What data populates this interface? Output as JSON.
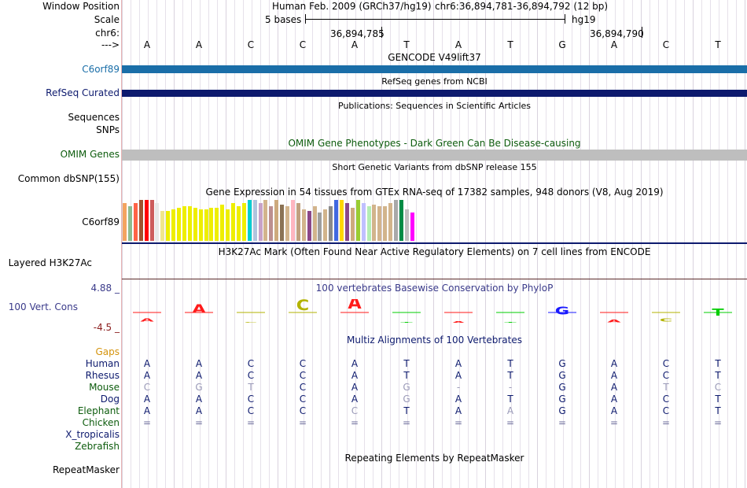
{
  "header": {
    "assembly": "Human Feb. 2009 (GRCh37/hg19)",
    "position": "chr6:36,894,781-36,894,792 (12 bp)",
    "scale_text": "5 bases",
    "scale_db": "hg19",
    "coord1": "36,894,785",
    "coord2": "36,894,790",
    "arrow": "--->"
  },
  "labels": {
    "window_position": "Window Position",
    "scale": "Scale",
    "chr": "chr6:",
    "arrow": "--->",
    "c6orf89": "C6orf89",
    "refseq": "RefSeq Curated",
    "sequences": "Sequences",
    "snps": "SNPs",
    "omim": "OMIM Genes",
    "dbsnp": "Common dbSNP(155)",
    "gtex": "C6orf89",
    "h3k27ac": "Layered H3K27Ac",
    "cons_max": "4.88 _",
    "cons": "100 Vert. Cons",
    "cons_min": "-4.5 _",
    "gaps": "Gaps",
    "human": "Human",
    "rhesus": "Rhesus",
    "mouse": "Mouse",
    "dog": "Dog",
    "elephant": "Elephant",
    "chicken": "Chicken",
    "xtrop": "X_tropicalis",
    "zebrafish": "Zebrafish",
    "repeatmasker": "RepeatMasker"
  },
  "tracks": {
    "gencode": "GENCODE V49lift37",
    "refseq": "RefSeq genes from NCBI",
    "publications": "Publications: Sequences in Scientific Articles",
    "omim": "OMIM Gene Phenotypes - Dark Green Can Be Disease-causing",
    "dbsnp": "Short Genetic Variants from dbSNP release 155",
    "gtex": "Gene Expression in 54 tissues from GTEx RNA-seq of 17382 samples, 948 donors (V8, Aug 2019)",
    "h3k27ac": "H3K27Ac Mark (Often Found Near Active Regulatory Elements) on 7 cell lines from ENCODE",
    "phylop": "100 vertebrates Basewise Conservation by PhyloP",
    "multiz": "Multiz Alignments of 100 Vertebrates",
    "repeatmasker": "Repeating Elements by RepeatMasker"
  },
  "sequence": [
    "A",
    "A",
    "C",
    "C",
    "A",
    "T",
    "A",
    "T",
    "G",
    "A",
    "C",
    "T"
  ],
  "alignment": {
    "Rhesus": [
      "A",
      "A",
      "C",
      "C",
      "A",
      "T",
      "A",
      "T",
      "G",
      "A",
      "C",
      "T"
    ],
    "Mouse": [
      "C",
      "G",
      "T",
      "C",
      "A",
      "G",
      "-",
      "-",
      "G",
      "A",
      "T",
      "C"
    ],
    "Dog": [
      "A",
      "A",
      "C",
      "C",
      "A",
      "G",
      "A",
      "T",
      "G",
      "A",
      "C",
      "T"
    ],
    "Elephant": [
      "A",
      "A",
      "C",
      "C",
      "C",
      "T",
      "A",
      "A",
      "G",
      "A",
      "C",
      "T"
    ],
    "Chicken": [
      "=",
      "=",
      "=",
      "=",
      "=",
      "=",
      "=",
      "=",
      "=",
      "=",
      "=",
      "="
    ]
  },
  "colors": {
    "gencode_bar": "#1a6ea8",
    "refseq_bar": "#0d1a6e",
    "omim_bar": "#bebebe",
    "label_blue": "#1a6ea8",
    "label_navy": "#0d1a6e",
    "label_green": "#0d5c0d",
    "label_gaps": "#d4930d",
    "label_cons": "#3a3a8a",
    "label_min": "#8a1c1c"
  },
  "gtex_values": [
    0.48,
    0.44,
    0.48,
    0.52,
    0.52,
    0.52,
    0.48,
    0.38,
    0.38,
    0.4,
    0.42,
    0.44,
    0.44,
    0.42,
    0.4,
    0.4,
    0.42,
    0.42,
    0.46,
    0.4,
    0.48,
    0.44,
    0.48,
    0.52,
    0.52,
    0.48,
    0.52,
    0.44,
    0.52,
    0.46,
    0.44,
    0.52,
    0.48,
    0.4,
    0.38,
    0.44,
    0.36,
    0.4,
    0.44,
    0.52,
    0.52,
    0.48,
    0.42,
    0.52,
    0.48,
    0.44,
    0.46,
    0.44,
    0.44,
    0.48,
    0.52,
    0.52,
    0.4,
    0.36
  ],
  "gtex_colors": [
    "#f4a460",
    "#8fbc8f",
    "#ff6347",
    "#a0522d",
    "#ff0000",
    "#cd5c5c",
    "#e8e8e8",
    "#f0e68c",
    "#eeee00",
    "#eeee00",
    "#eeee00",
    "#eeee00",
    "#eeee00",
    "#eeee00",
    "#eeee00",
    "#eeee00",
    "#eeee00",
    "#eeee00",
    "#eeee00",
    "#eeee00",
    "#eeee00",
    "#eeee00",
    "#eeee00",
    "#00ced1",
    "#b0c4de",
    "#c8a2c8",
    "#d2b48c",
    "#bc8f8f",
    "#cdaa7d",
    "#8b7355",
    "#d2b48c",
    "#ffb6c1",
    "#c0a080",
    "#d2b48c",
    "#8b4789",
    "#d2b48c",
    "#9e9e9e",
    "#d2b48c",
    "#8a8a8a",
    "#4169e1",
    "#ffd700",
    "#8b4789",
    "#cdaa7d",
    "#9acd32",
    "#c0c0ff",
    "#b4eeb4",
    "#d2b48c",
    "#d2b48c",
    "#d2b48c",
    "#d2b48c",
    "#a9a9a9",
    "#008b45",
    "#bebebe",
    "#ff00ff"
  ]
}
